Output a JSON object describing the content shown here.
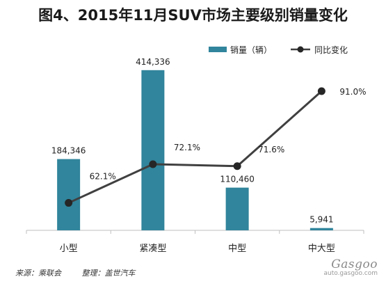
{
  "title": "图4、2015年11月SUV市场主要级别销量变化",
  "chart_data": {
    "type": "bar",
    "categories": [
      "小型",
      "紧凑型",
      "中型",
      "中大型"
    ],
    "series": [
      {
        "name": "销量（辆）",
        "kind": "bar",
        "color": "#31859c",
        "values": [
          184346,
          414336,
          110460,
          5941
        ],
        "labels": [
          "184,346",
          "414,336",
          "110,460",
          "5,941"
        ]
      },
      {
        "name": "同比变化",
        "kind": "line",
        "color": "#404040",
        "values": [
          62.1,
          72.1,
          71.6,
          91.0
        ],
        "labels": [
          "62.1%",
          "72.1%",
          "71.6%",
          "91.0%"
        ]
      }
    ],
    "ylim": [
      0,
      450000
    ],
    "y2lim": [
      55,
      100
    ],
    "legend_position": "top-right"
  },
  "footer": {
    "source": "来源：乘联会",
    "editor": "整理：盖世汽车"
  },
  "watermark": {
    "logo": "Gasgoo",
    "url": "auto.gasgoo.com"
  }
}
